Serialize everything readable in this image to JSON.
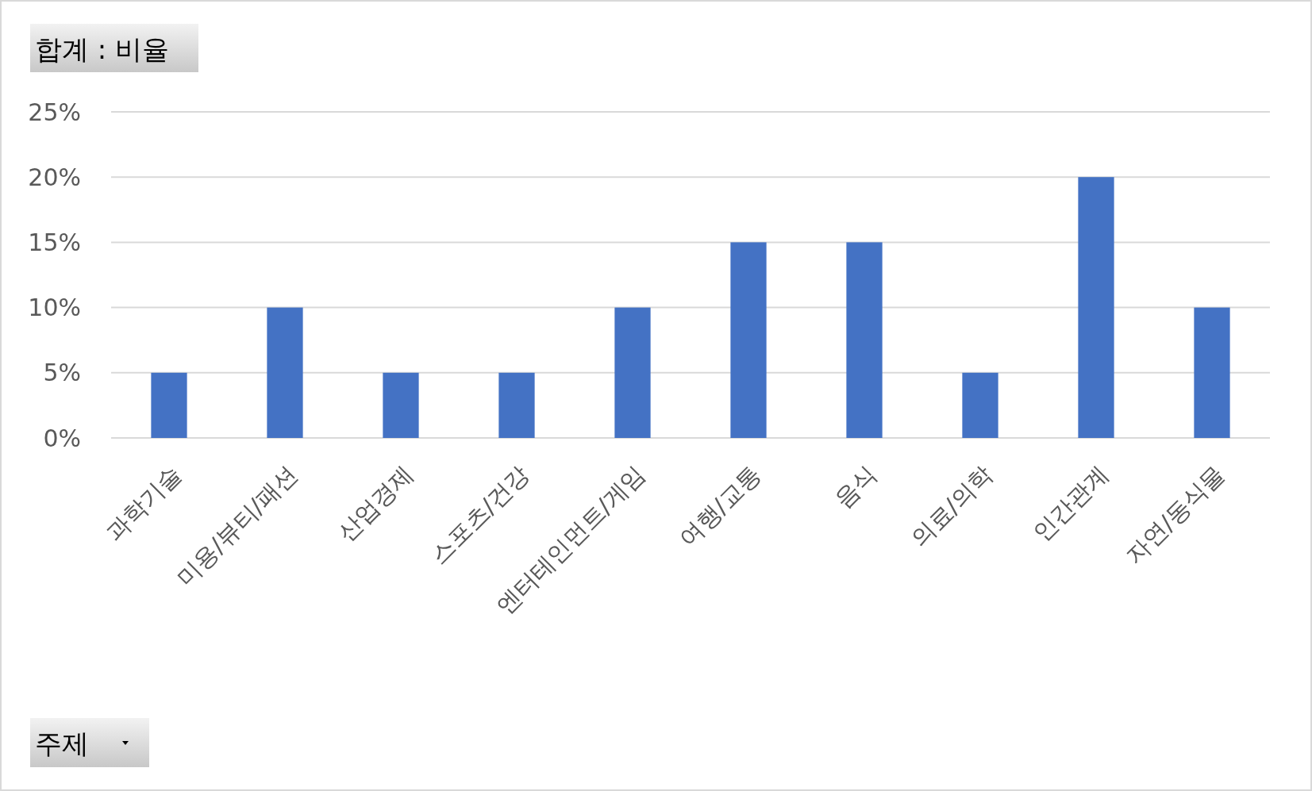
{
  "chart_data": {
    "type": "bar",
    "categories": [
      "과학기술",
      "미용/뷰티/패션",
      "산업경제",
      "스포츠/건강",
      "엔터테인먼트/게임",
      "여행/교통",
      "음식",
      "의료/의학",
      "인간관계",
      "자연/동식물"
    ],
    "values": [
      5,
      10,
      5,
      5,
      10,
      15,
      15,
      5,
      20,
      10
    ],
    "color": "#4472c4",
    "ylim": [
      0,
      25
    ],
    "yticks": [
      {
        "value": 0,
        "label": "0%"
      },
      {
        "value": 5,
        "label": "5%"
      },
      {
        "value": 10,
        "label": "10%"
      },
      {
        "value": 15,
        "label": "15%"
      },
      {
        "value": 20,
        "label": "20%"
      },
      {
        "value": 25,
        "label": "25%"
      }
    ],
    "grid": "y",
    "annotations": [
      "합계 : 비율",
      "주제"
    ]
  }
}
